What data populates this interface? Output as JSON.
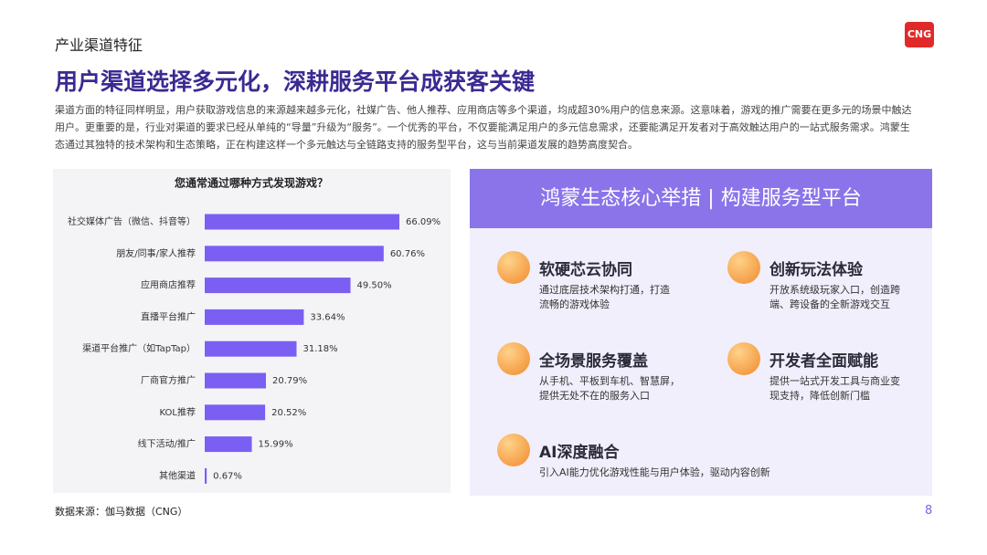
{
  "header": {
    "section": "产业渠道特征",
    "logo": "CNG",
    "title": "用户渠道选择多元化，深耕服务平台成获客关键",
    "body": [
      "渠道方面的特征同样明显，用户获取游戏信息的来源越来越多元化，社媒广告、他人推荐、应用商店等多个渠道，均成超30%用户的信息来源。这意味着，游戏的推广需要在更多元的场景中触达",
      "用户。更重要的是，行业对渠道的要求已经从单纯的“导量”升级为“服务”。一个优秀的平台，不仅要能满足用户的多元信息需求，还要能满足开发者对于高效触达用户的一站式服务需求。鸿蒙生",
      "态通过其独特的技术架构和生态策略，正在构建这样一个多元触达与全链路支持的服务型平台，这与当前渠道发展的趋势高度契合。"
    ]
  },
  "chart_data": {
    "type": "bar",
    "orientation": "horizontal",
    "title": "您通常通过哪种方式发现游戏？",
    "categories": [
      "社交媒体广告（微信、抖音等）",
      "朋友/同事/家人推荐",
      "应用商店推荐",
      "直播平台推广",
      "渠道平台推广（如TapTap）",
      "厂商官方推广",
      "KOL推荐",
      "线下活动/推广",
      "其他渠道"
    ],
    "values": [
      66.09,
      60.76,
      49.5,
      33.64,
      31.18,
      20.79,
      20.52,
      15.99,
      0.67
    ],
    "value_labels": [
      "66.09%",
      "60.76%",
      "49.50%",
      "33.64%",
      "31.18%",
      "20.79%",
      "20.52%",
      "15.99%",
      "0.67%"
    ],
    "color": "#7b5ff2"
  },
  "panel": {
    "title": "鸿蒙生态核心举措 | 构建服务型平台",
    "items": [
      {
        "title": "软硬芯云协同",
        "desc": [
          "通过底层技术架构打通，打造",
          "流畅的游戏体验"
        ]
      },
      {
        "title": "创新玩法体验",
        "desc": [
          "开放系统级玩家入口，创造跨",
          "端、跨设备的全新游戏交互"
        ]
      },
      {
        "title": "全场景服务覆盖",
        "desc": [
          "从手机、平板到车机、智慧屏，",
          "提供无处不在的服务入口"
        ]
      },
      {
        "title": "开发者全面赋能",
        "desc": [
          "提供一站式开发工具与商业变",
          "现支持，降低创新门槛"
        ]
      },
      {
        "title": "AI深度融合",
        "desc": [
          "引入AI能力优化游戏性能与用户体验，驱动内容创新"
        ]
      }
    ]
  },
  "footer": {
    "source": "数据来源：伽马数据（CNG）",
    "page": 8
  }
}
